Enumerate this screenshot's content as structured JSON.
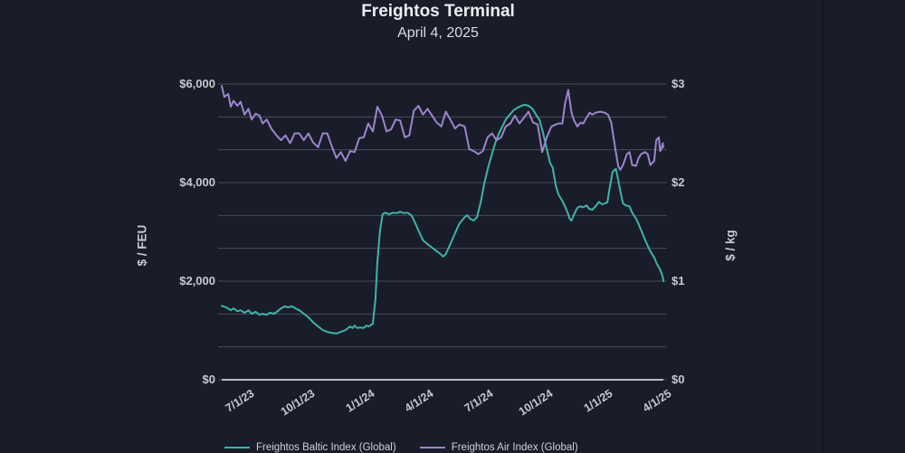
{
  "page": {
    "title": "Freightos Terminal",
    "subtitle": "April 4, 2025"
  },
  "colors": {
    "background": "#191d29",
    "grid": "#464c59",
    "axis_line": "#b6bbc5",
    "tick_label": "#c6cad3",
    "title": "#eaedf3",
    "baltic": "#3fb3a8",
    "air": "#9c85cc"
  },
  "chart_data": {
    "type": "line",
    "title": "Freightos Terminal",
    "subtitle": "April 4, 2025",
    "grid": true,
    "grid_divisions": 9,
    "legend_position": "bottom",
    "x_range": [
      "2023-05-27",
      "2025-04-04"
    ],
    "x_ticks": [
      [
        "2023-07-01",
        "7/1/23"
      ],
      [
        "2023-10-01",
        "10/1/23"
      ],
      [
        "2024-01-01",
        "1/1/24"
      ],
      [
        "2024-04-01",
        "4/1/24"
      ],
      [
        "2024-07-01",
        "7/1/24"
      ],
      [
        "2024-10-01",
        "10/1/24"
      ],
      [
        "2025-01-01",
        "1/1/25"
      ],
      [
        "2025-04-01",
        "4/1/25"
      ]
    ],
    "y_left": {
      "label": "$ / FEU",
      "range": [
        0,
        6000
      ],
      "ticks": [
        [
          6000,
          "$6,000"
        ],
        [
          4000,
          "$4,000"
        ],
        [
          2000,
          "$2,000"
        ],
        [
          0,
          "$0"
        ]
      ]
    },
    "y_right": {
      "label": "$ / kg",
      "range": [
        0,
        3
      ],
      "ticks": [
        [
          3,
          "$3"
        ],
        [
          2,
          "$2"
        ],
        [
          1,
          "$1"
        ],
        [
          0,
          "$0"
        ]
      ]
    },
    "series": [
      {
        "name": "Freightos Baltic Index (Global)",
        "axis": "left",
        "color": "#3fb3a8",
        "points": [
          [
            "2023-05-27",
            1500
          ],
          [
            "2023-06-03",
            1470
          ],
          [
            "2023-06-10",
            1410
          ],
          [
            "2023-06-14",
            1450
          ],
          [
            "2023-06-20",
            1390
          ],
          [
            "2023-06-25",
            1410
          ],
          [
            "2023-07-01",
            1360
          ],
          [
            "2023-07-07",
            1410
          ],
          [
            "2023-07-12",
            1340
          ],
          [
            "2023-07-18",
            1380
          ],
          [
            "2023-07-24",
            1320
          ],
          [
            "2023-07-29",
            1340
          ],
          [
            "2023-08-04",
            1320
          ],
          [
            "2023-08-09",
            1360
          ],
          [
            "2023-08-15",
            1340
          ],
          [
            "2023-08-21",
            1390
          ],
          [
            "2023-08-26",
            1450
          ],
          [
            "2023-09-01",
            1490
          ],
          [
            "2023-09-06",
            1470
          ],
          [
            "2023-09-12",
            1490
          ],
          [
            "2023-09-17",
            1450
          ],
          [
            "2023-09-23",
            1410
          ],
          [
            "2023-09-30",
            1340
          ],
          [
            "2023-10-07",
            1270
          ],
          [
            "2023-10-14",
            1170
          ],
          [
            "2023-10-22",
            1080
          ],
          [
            "2023-10-29",
            1010
          ],
          [
            "2023-11-05",
            970
          ],
          [
            "2023-11-12",
            950
          ],
          [
            "2023-11-19",
            940
          ],
          [
            "2023-11-26",
            970
          ],
          [
            "2023-12-03",
            1010
          ],
          [
            "2023-12-10",
            1080
          ],
          [
            "2023-12-14",
            1050
          ],
          [
            "2023-12-17",
            1100
          ],
          [
            "2023-12-21",
            1050
          ],
          [
            "2023-12-25",
            1060
          ],
          [
            "2023-12-31",
            1050
          ],
          [
            "2024-01-04",
            1100
          ],
          [
            "2024-01-08",
            1080
          ],
          [
            "2024-01-14",
            1140
          ],
          [
            "2024-01-18",
            1650
          ],
          [
            "2024-01-21",
            2390
          ],
          [
            "2024-01-25",
            3030
          ],
          [
            "2024-01-29",
            3360
          ],
          [
            "2024-02-02",
            3390
          ],
          [
            "2024-02-08",
            3360
          ],
          [
            "2024-02-14",
            3390
          ],
          [
            "2024-02-19",
            3380
          ],
          [
            "2024-02-25",
            3410
          ],
          [
            "2024-03-02",
            3380
          ],
          [
            "2024-03-07",
            3390
          ],
          [
            "2024-03-13",
            3340
          ],
          [
            "2024-03-18",
            3210
          ],
          [
            "2024-03-24",
            3030
          ],
          [
            "2024-03-31",
            2830
          ],
          [
            "2024-04-07",
            2750
          ],
          [
            "2024-04-14",
            2680
          ],
          [
            "2024-04-21",
            2610
          ],
          [
            "2024-04-27",
            2550
          ],
          [
            "2024-05-01",
            2500
          ],
          [
            "2024-05-05",
            2550
          ],
          [
            "2024-05-12",
            2750
          ],
          [
            "2024-05-19",
            2970
          ],
          [
            "2024-05-26",
            3170
          ],
          [
            "2024-06-03",
            3300
          ],
          [
            "2024-06-07",
            3340
          ],
          [
            "2024-06-11",
            3270
          ],
          [
            "2024-06-17",
            3230
          ],
          [
            "2024-06-22",
            3300
          ],
          [
            "2024-06-28",
            3630
          ],
          [
            "2024-07-03",
            3980
          ],
          [
            "2024-07-09",
            4310
          ],
          [
            "2024-07-15",
            4590
          ],
          [
            "2024-07-20",
            4810
          ],
          [
            "2024-07-26",
            5010
          ],
          [
            "2024-08-01",
            5170
          ],
          [
            "2024-08-06",
            5300
          ],
          [
            "2024-08-12",
            5390
          ],
          [
            "2024-08-17",
            5470
          ],
          [
            "2024-08-23",
            5520
          ],
          [
            "2024-08-29",
            5560
          ],
          [
            "2024-09-03",
            5580
          ],
          [
            "2024-09-09",
            5560
          ],
          [
            "2024-09-15",
            5500
          ],
          [
            "2024-09-20",
            5390
          ],
          [
            "2024-09-26",
            5270
          ],
          [
            "2024-10-01",
            5030
          ],
          [
            "2024-10-07",
            4680
          ],
          [
            "2024-10-12",
            4400
          ],
          [
            "2024-10-16",
            4310
          ],
          [
            "2024-10-21",
            3940
          ],
          [
            "2024-10-25",
            3760
          ],
          [
            "2024-10-31",
            3630
          ],
          [
            "2024-11-04",
            3520
          ],
          [
            "2024-11-09",
            3360
          ],
          [
            "2024-11-11",
            3270
          ],
          [
            "2024-11-14",
            3230
          ],
          [
            "2024-11-18",
            3360
          ],
          [
            "2024-11-23",
            3490
          ],
          [
            "2024-11-28",
            3520
          ],
          [
            "2024-12-02",
            3500
          ],
          [
            "2024-12-07",
            3540
          ],
          [
            "2024-12-11",
            3470
          ],
          [
            "2024-12-16",
            3450
          ],
          [
            "2024-12-21",
            3520
          ],
          [
            "2024-12-26",
            3610
          ],
          [
            "2024-12-31",
            3560
          ],
          [
            "2025-01-04",
            3580
          ],
          [
            "2025-01-08",
            3600
          ],
          [
            "2025-01-11",
            3850
          ],
          [
            "2025-01-16",
            4220
          ],
          [
            "2025-01-21",
            4280
          ],
          [
            "2025-01-25",
            4040
          ],
          [
            "2025-01-28",
            3820
          ],
          [
            "2025-02-01",
            3580
          ],
          [
            "2025-02-05",
            3540
          ],
          [
            "2025-02-11",
            3520
          ],
          [
            "2025-02-15",
            3390
          ],
          [
            "2025-02-21",
            3270
          ],
          [
            "2025-02-25",
            3160
          ],
          [
            "2025-03-01",
            3030
          ],
          [
            "2025-03-07",
            2840
          ],
          [
            "2025-03-11",
            2720
          ],
          [
            "2025-03-15",
            2610
          ],
          [
            "2025-03-21",
            2480
          ],
          [
            "2025-03-25",
            2350
          ],
          [
            "2025-03-29",
            2260
          ],
          [
            "2025-04-01",
            2170
          ],
          [
            "2025-04-03",
            2090
          ],
          [
            "2025-04-04",
            2000
          ]
        ]
      },
      {
        "name": "Freightos Air Index (Global)",
        "axis": "right",
        "color": "#9c85cc",
        "points": [
          [
            "2023-05-27",
            2.98
          ],
          [
            "2023-05-31",
            2.87
          ],
          [
            "2023-06-06",
            2.9
          ],
          [
            "2023-06-10",
            2.77
          ],
          [
            "2023-06-14",
            2.83
          ],
          [
            "2023-06-20",
            2.78
          ],
          [
            "2023-06-25",
            2.82
          ],
          [
            "2023-07-01",
            2.69
          ],
          [
            "2023-07-07",
            2.75
          ],
          [
            "2023-07-12",
            2.64
          ],
          [
            "2023-07-18",
            2.7
          ],
          [
            "2023-07-24",
            2.68
          ],
          [
            "2023-07-29",
            2.6
          ],
          [
            "2023-08-04",
            2.64
          ],
          [
            "2023-08-12",
            2.54
          ],
          [
            "2023-08-19",
            2.48
          ],
          [
            "2023-08-26",
            2.43
          ],
          [
            "2023-09-02",
            2.48
          ],
          [
            "2023-09-09",
            2.4
          ],
          [
            "2023-09-16",
            2.5
          ],
          [
            "2023-09-23",
            2.5
          ],
          [
            "2023-09-30",
            2.43
          ],
          [
            "2023-10-07",
            2.5
          ],
          [
            "2023-10-14",
            2.41
          ],
          [
            "2023-10-22",
            2.36
          ],
          [
            "2023-10-29",
            2.5
          ],
          [
            "2023-11-05",
            2.5
          ],
          [
            "2023-11-12",
            2.37
          ],
          [
            "2023-11-19",
            2.25
          ],
          [
            "2023-11-26",
            2.31
          ],
          [
            "2023-12-03",
            2.22
          ],
          [
            "2023-12-10",
            2.32
          ],
          [
            "2023-12-17",
            2.31
          ],
          [
            "2023-12-24",
            2.45
          ],
          [
            "2023-12-31",
            2.46
          ],
          [
            "2024-01-07",
            2.6
          ],
          [
            "2024-01-14",
            2.52
          ],
          [
            "2024-01-21",
            2.77
          ],
          [
            "2024-01-28",
            2.68
          ],
          [
            "2024-02-04",
            2.52
          ],
          [
            "2024-02-11",
            2.54
          ],
          [
            "2024-02-18",
            2.64
          ],
          [
            "2024-02-25",
            2.63
          ],
          [
            "2024-03-03",
            2.46
          ],
          [
            "2024-03-10",
            2.48
          ],
          [
            "2024-03-17",
            2.73
          ],
          [
            "2024-03-24",
            2.78
          ],
          [
            "2024-03-31",
            2.69
          ],
          [
            "2024-04-07",
            2.75
          ],
          [
            "2024-04-14",
            2.68
          ],
          [
            "2024-04-21",
            2.61
          ],
          [
            "2024-04-28",
            2.57
          ],
          [
            "2024-05-05",
            2.72
          ],
          [
            "2024-05-12",
            2.64
          ],
          [
            "2024-05-19",
            2.55
          ],
          [
            "2024-05-26",
            2.59
          ],
          [
            "2024-06-03",
            2.57
          ],
          [
            "2024-06-10",
            2.34
          ],
          [
            "2024-06-17",
            2.32
          ],
          [
            "2024-06-24",
            2.29
          ],
          [
            "2024-07-01",
            2.32
          ],
          [
            "2024-07-08",
            2.46
          ],
          [
            "2024-07-15",
            2.5
          ],
          [
            "2024-07-22",
            2.43
          ],
          [
            "2024-07-29",
            2.46
          ],
          [
            "2024-08-05",
            2.57
          ],
          [
            "2024-08-12",
            2.6
          ],
          [
            "2024-08-19",
            2.68
          ],
          [
            "2024-08-26",
            2.6
          ],
          [
            "2024-09-02",
            2.66
          ],
          [
            "2024-09-09",
            2.72
          ],
          [
            "2024-09-16",
            2.61
          ],
          [
            "2024-09-23",
            2.59
          ],
          [
            "2024-09-30",
            2.31
          ],
          [
            "2024-10-07",
            2.46
          ],
          [
            "2024-10-14",
            2.57
          ],
          [
            "2024-10-21",
            2.59
          ],
          [
            "2024-10-25",
            2.6
          ],
          [
            "2024-10-31",
            2.6
          ],
          [
            "2024-11-04",
            2.8
          ],
          [
            "2024-11-09",
            2.94
          ],
          [
            "2024-11-14",
            2.71
          ],
          [
            "2024-11-18",
            2.63
          ],
          [
            "2024-11-23",
            2.57
          ],
          [
            "2024-11-28",
            2.61
          ],
          [
            "2024-12-02",
            2.6
          ],
          [
            "2024-12-07",
            2.66
          ],
          [
            "2024-12-12",
            2.71
          ],
          [
            "2024-12-16",
            2.69
          ],
          [
            "2024-12-21",
            2.71
          ],
          [
            "2024-12-28",
            2.72
          ],
          [
            "2025-01-04",
            2.71
          ],
          [
            "2025-01-09",
            2.69
          ],
          [
            "2025-01-14",
            2.61
          ],
          [
            "2025-01-16",
            2.52
          ],
          [
            "2025-01-21",
            2.31
          ],
          [
            "2025-01-25",
            2.16
          ],
          [
            "2025-01-28",
            2.13
          ],
          [
            "2025-02-01",
            2.18
          ],
          [
            "2025-02-07",
            2.29
          ],
          [
            "2025-02-11",
            2.31
          ],
          [
            "2025-02-15",
            2.18
          ],
          [
            "2025-02-21",
            2.17
          ],
          [
            "2025-02-25",
            2.25
          ],
          [
            "2025-03-01",
            2.29
          ],
          [
            "2025-03-07",
            2.31
          ],
          [
            "2025-03-11",
            2.29
          ],
          [
            "2025-03-15",
            2.18
          ],
          [
            "2025-03-21",
            2.22
          ],
          [
            "2025-03-24",
            2.43
          ],
          [
            "2025-03-28",
            2.46
          ],
          [
            "2025-03-30",
            2.32
          ],
          [
            "2025-04-01",
            2.34
          ],
          [
            "2025-04-03",
            2.4
          ],
          [
            "2025-04-04",
            2.36
          ]
        ]
      }
    ]
  }
}
